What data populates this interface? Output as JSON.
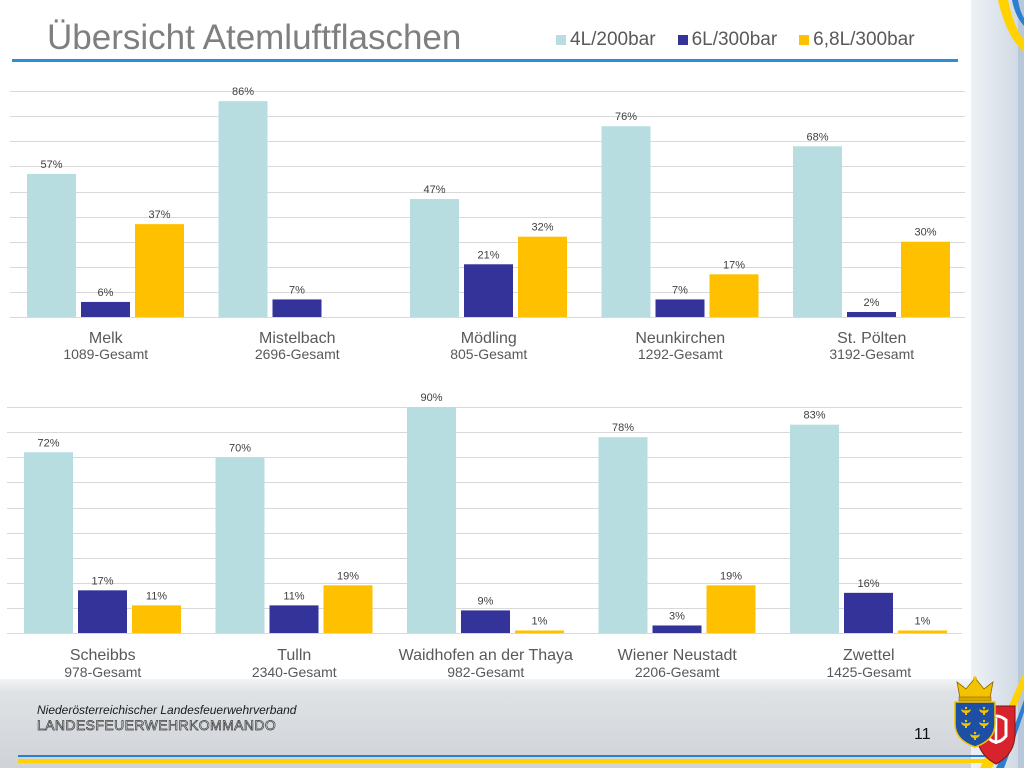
{
  "slide": {
    "title": "Übersicht Atemluftflaschen",
    "page_number": "11"
  },
  "footer": {
    "organization": "Niederösterreichischer Landesfeuerwehrverband",
    "department": "LANDESFEUERWEHRKOMMANDO"
  },
  "colors": {
    "title_rule": "#2b8fd8",
    "gridline": "#d9d9d9",
    "label_text": "#595959",
    "data_label_text": "#404040"
  },
  "logo": {
    "icons": [
      "crown-icon",
      "lower-austria-shield-icon",
      "eagle-icon",
      "fire-brigade-shield-icon"
    ]
  },
  "chart_data": [
    {
      "type": "bar",
      "categories": [
        "Melk",
        "Mistelbach",
        "Mödling",
        "Neunkirchen",
        "St. Pölten"
      ],
      "category_totals": [
        "1089-Gesamt",
        "2696-Gesamt",
        "805-Gesamt",
        "1292-Gesamt",
        "3192-Gesamt"
      ],
      "series": [
        {
          "name": "4L/200bar",
          "color": "#b7dde1",
          "values": [
            57,
            86,
            47,
            76,
            68
          ]
        },
        {
          "name": "6L/300bar",
          "color": "#333399",
          "values": [
            6,
            7,
            21,
            7,
            2
          ]
        },
        {
          "name": "6,8L/300bar",
          "color": "#ffc000",
          "values": [
            37,
            null,
            32,
            17,
            30
          ]
        }
      ],
      "unit": "%",
      "ylim": [
        0,
        90
      ],
      "y_gridline_interval": 10,
      "grid": true,
      "data_labels": true,
      "legend": "top-right"
    },
    {
      "type": "bar",
      "categories": [
        "Scheibbs",
        "Tulln",
        "Waidhofen an der Thaya",
        "Wiener Neustadt",
        "Zwettel"
      ],
      "category_totals": [
        "978-Gesamt",
        "2340-Gesamt",
        "982-Gesamt",
        "2206-Gesamt",
        "1425-Gesamt"
      ],
      "series": [
        {
          "name": "4L/200bar",
          "color": "#b7dde1",
          "values": [
            72,
            70,
            90,
            78,
            83
          ]
        },
        {
          "name": "6L/300bar",
          "color": "#333399",
          "values": [
            17,
            11,
            9,
            3,
            16
          ]
        },
        {
          "name": "6,8L/300bar",
          "color": "#ffc000",
          "values": [
            11,
            19,
            1,
            19,
            1
          ]
        }
      ],
      "unit": "%",
      "ylim": [
        0,
        90
      ],
      "y_gridline_interval": 10,
      "grid": true,
      "data_labels": true,
      "legend": "top-right"
    }
  ]
}
